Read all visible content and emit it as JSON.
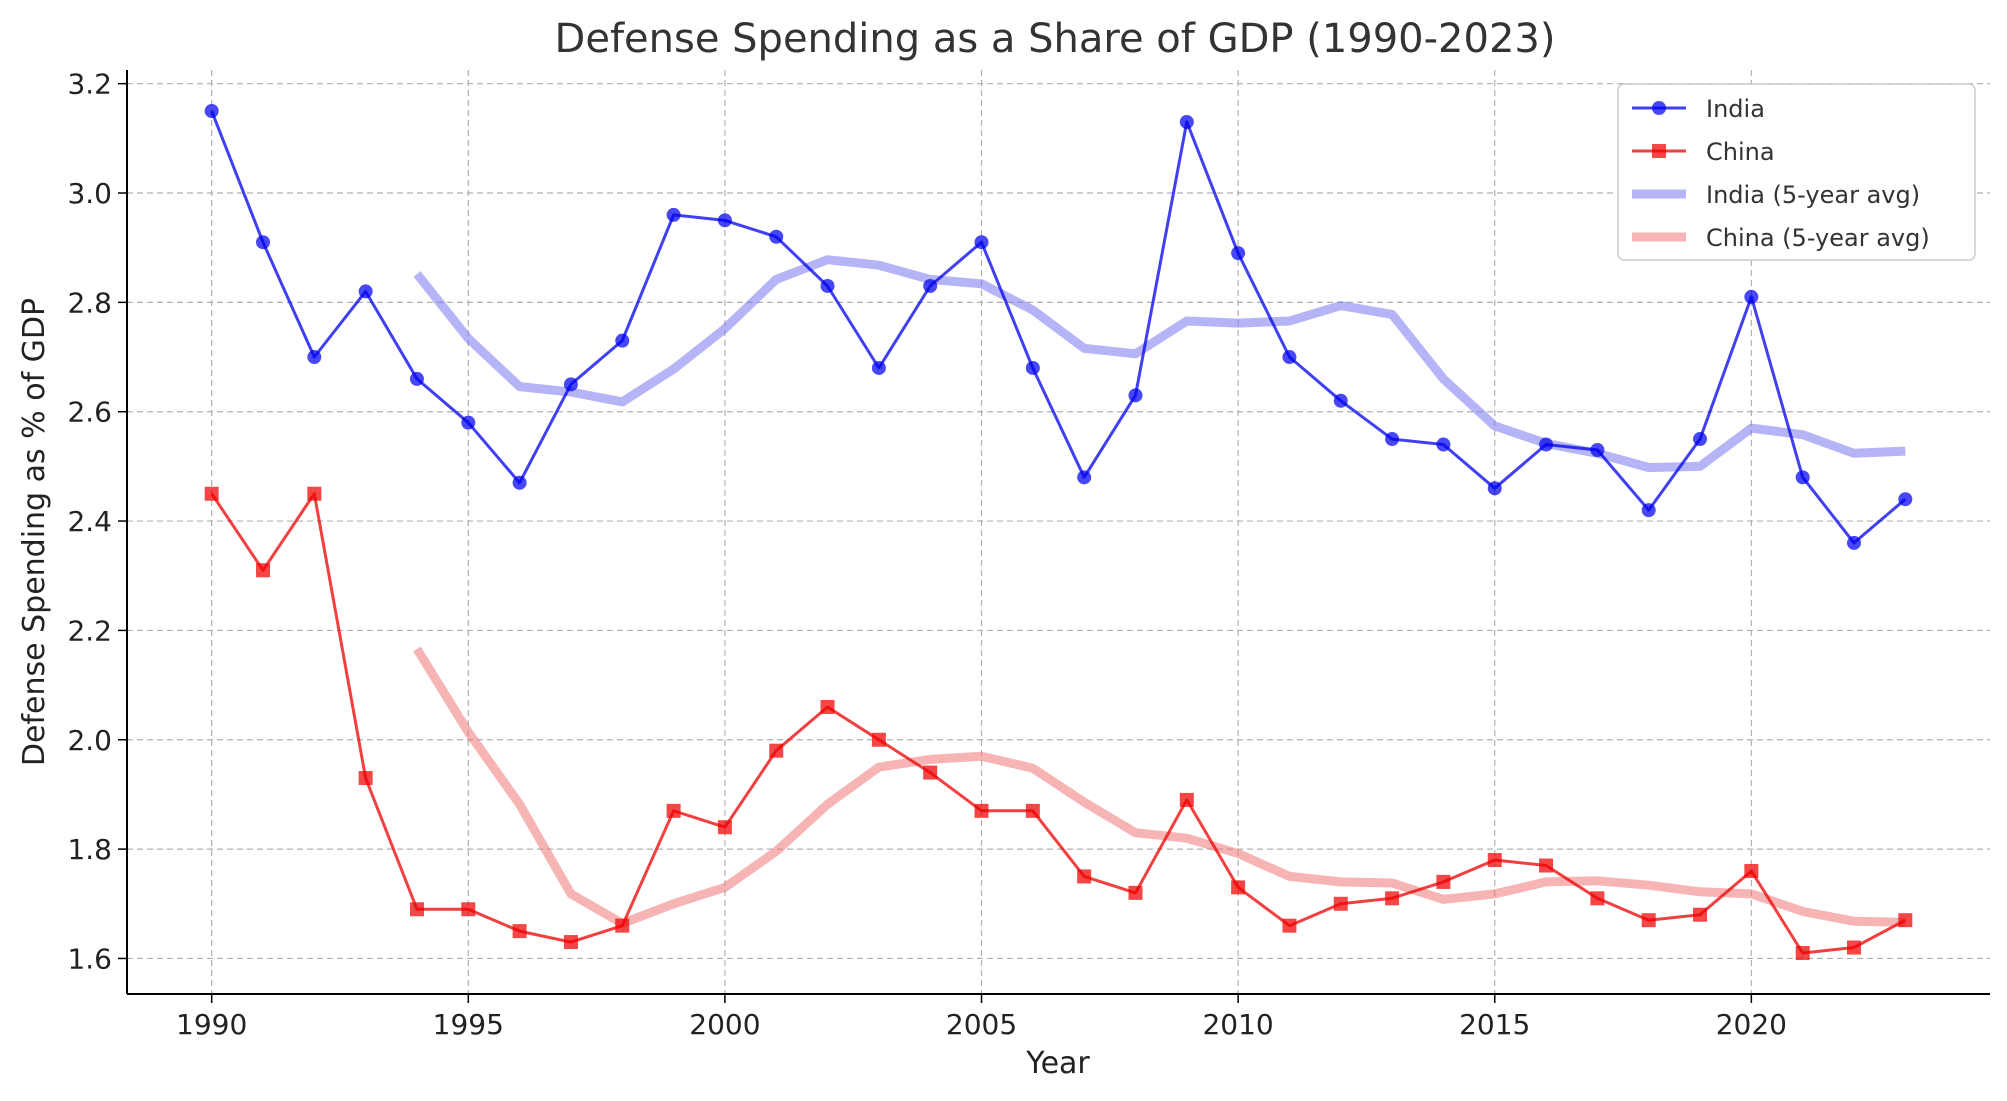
{
  "chart_data": {
    "type": "line",
    "title": "Defense Spending as a Share of GDP (1990-2023)",
    "xlabel": "Year",
    "ylabel": "Defense Spending as % of GDP",
    "xlim": [
      1988.35,
      2024.65
    ],
    "ylim": [
      1.535,
      3.225
    ],
    "x_ticks": [
      1990,
      1995,
      2000,
      2005,
      2010,
      2015,
      2020
    ],
    "y_ticks": [
      1.6,
      1.8,
      2.0,
      2.2,
      2.4,
      2.6,
      2.8,
      3.0,
      3.2
    ],
    "grid": true,
    "legend_position": "top-right",
    "series": [
      {
        "name": "India",
        "color": "#0000ee",
        "marker": "circle",
        "style": "line-marker",
        "x": [
          1990,
          1991,
          1992,
          1993,
          1994,
          1995,
          1996,
          1997,
          1998,
          1999,
          2000,
          2001,
          2002,
          2003,
          2004,
          2005,
          2006,
          2007,
          2008,
          2009,
          2010,
          2011,
          2012,
          2013,
          2014,
          2015,
          2016,
          2017,
          2018,
          2019,
          2020,
          2021,
          2022,
          2023
        ],
        "values": [
          3.15,
          2.91,
          2.7,
          2.82,
          2.66,
          2.58,
          2.47,
          2.65,
          2.73,
          2.96,
          2.95,
          2.92,
          2.83,
          2.68,
          2.83,
          2.91,
          2.68,
          2.48,
          2.63,
          3.13,
          2.89,
          2.7,
          2.62,
          2.55,
          2.54,
          2.46,
          2.54,
          2.53,
          2.42,
          2.55,
          2.81,
          2.48,
          2.36,
          2.44
        ]
      },
      {
        "name": "China",
        "color": "#ee0000",
        "marker": "square",
        "style": "line-marker",
        "x": [
          1990,
          1991,
          1992,
          1993,
          1994,
          1995,
          1996,
          1997,
          1998,
          1999,
          2000,
          2001,
          2002,
          2003,
          2004,
          2005,
          2006,
          2007,
          2008,
          2009,
          2010,
          2011,
          2012,
          2013,
          2014,
          2015,
          2016,
          2017,
          2018,
          2019,
          2020,
          2021,
          2022,
          2023
        ],
        "values": [
          2.45,
          2.31,
          2.45,
          1.93,
          1.69,
          1.69,
          1.65,
          1.63,
          1.66,
          1.87,
          1.84,
          1.98,
          2.06,
          2.0,
          1.94,
          1.87,
          1.87,
          1.75,
          1.72,
          1.89,
          1.73,
          1.66,
          1.7,
          1.71,
          1.74,
          1.78,
          1.77,
          1.71,
          1.67,
          1.68,
          1.76,
          1.61,
          1.62,
          1.67
        ]
      },
      {
        "name": "India (5-year avg)",
        "color": "#7777ee",
        "style": "thick",
        "x": [
          1994,
          1995,
          1996,
          1997,
          1998,
          1999,
          2000,
          2001,
          2002,
          2003,
          2004,
          2005,
          2006,
          2007,
          2008,
          2009,
          2010,
          2011,
          2012,
          2013,
          2014,
          2015,
          2016,
          2017,
          2018,
          2019,
          2020,
          2021,
          2022,
          2023
        ],
        "values": [
          2.852,
          2.734,
          2.646,
          2.636,
          2.618,
          2.678,
          2.752,
          2.842,
          2.878,
          2.868,
          2.842,
          2.834,
          2.786,
          2.716,
          2.706,
          2.766,
          2.762,
          2.766,
          2.794,
          2.778,
          2.66,
          2.574,
          2.542,
          2.524,
          2.498,
          2.5,
          2.57,
          2.558,
          2.524,
          2.528
        ]
      },
      {
        "name": "China (5-year avg)",
        "color": "#ee7777",
        "style": "thick",
        "x": [
          1994,
          1995,
          1996,
          1997,
          1998,
          1999,
          2000,
          2001,
          2002,
          2003,
          2004,
          2005,
          2006,
          2007,
          2008,
          2009,
          2010,
          2011,
          2012,
          2013,
          2014,
          2015,
          2016,
          2017,
          2018,
          2019,
          2020,
          2021,
          2022,
          2023
        ],
        "values": [
          2.166,
          2.014,
          1.882,
          1.718,
          1.664,
          1.7,
          1.73,
          1.796,
          1.882,
          1.95,
          1.964,
          1.97,
          1.948,
          1.886,
          1.83,
          1.82,
          1.792,
          1.75,
          1.74,
          1.738,
          1.708,
          1.718,
          1.74,
          1.742,
          1.734,
          1.722,
          1.718,
          1.686,
          1.668,
          1.666
        ]
      }
    ]
  }
}
